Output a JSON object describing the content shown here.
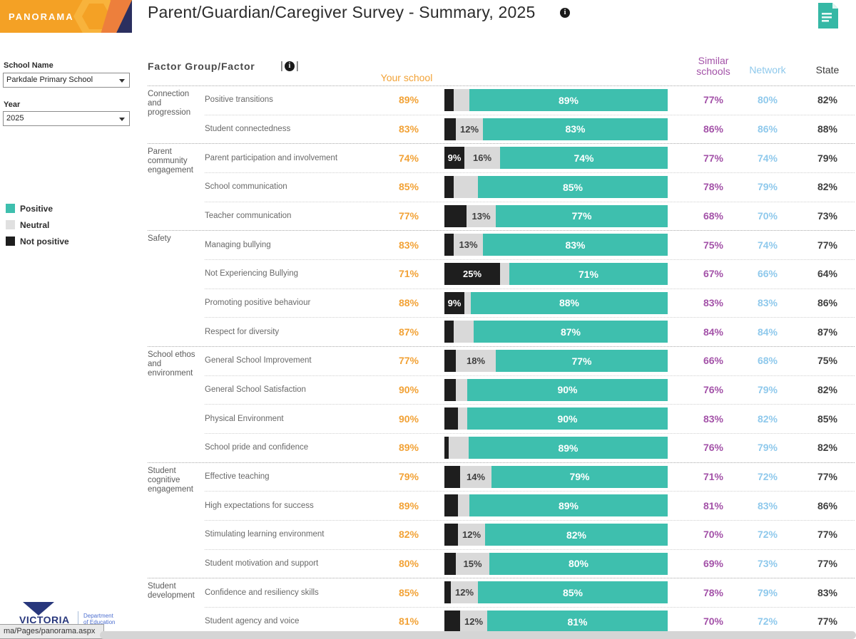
{
  "banner": {
    "brand": "PANORAMA"
  },
  "header": {
    "title": "Parent/Guardian/Caregiver Survey - Summary, 2025"
  },
  "sidebar": {
    "school_label": "School Name",
    "school_value": "Parkdale Primary School",
    "year_label": "Year",
    "year_value": "2025",
    "legend": [
      {
        "label": "Positive",
        "color": "#3ebfae"
      },
      {
        "label": "Neutral",
        "color": "#e0e0e0"
      },
      {
        "label": "Not positive",
        "color": "#1e1e1e"
      }
    ]
  },
  "table": {
    "col_factor": "Factor Group/Factor",
    "col_your_school": "Your school",
    "col_similar": "Similar schools",
    "col_network": "Network",
    "col_state": "State",
    "bar_colors": {
      "positive": "#3ebfae",
      "neutral": "#d9d9d9",
      "not_positive": "#1e1e1e"
    },
    "groups": [
      {
        "group": "Connection and progression",
        "rows": [
          {
            "factor": "Positive transitions",
            "your": "89%",
            "np": 4,
            "np_label": "",
            "neu": 7,
            "neu_label": "",
            "pos_label": "89%",
            "similar": "77%",
            "network": "80%",
            "state": "82%"
          },
          {
            "factor": "Student connectedness",
            "your": "83%",
            "np": 5,
            "np_label": "",
            "neu": 12,
            "neu_label": "12%",
            "pos_label": "83%",
            "similar": "86%",
            "network": "86%",
            "state": "88%"
          }
        ]
      },
      {
        "group": "Parent community engagement",
        "rows": [
          {
            "factor": "Parent participation and involvement",
            "your": "74%",
            "np": 9,
            "np_label": "9%",
            "neu": 16,
            "neu_label": "16%",
            "pos_label": "74%",
            "similar": "77%",
            "network": "74%",
            "state": "79%"
          },
          {
            "factor": "School communication",
            "your": "85%",
            "np": 4,
            "np_label": "",
            "neu": 11,
            "neu_label": "",
            "pos_label": "85%",
            "similar": "78%",
            "network": "79%",
            "state": "82%"
          },
          {
            "factor": "Teacher communication",
            "your": "77%",
            "np": 10,
            "np_label": "",
            "neu": 13,
            "neu_label": "13%",
            "pos_label": "77%",
            "similar": "68%",
            "network": "70%",
            "state": "73%"
          }
        ]
      },
      {
        "group": "Safety",
        "rows": [
          {
            "factor": "Managing bullying",
            "your": "83%",
            "np": 4,
            "np_label": "",
            "neu": 13,
            "neu_label": "13%",
            "pos_label": "83%",
            "similar": "75%",
            "network": "74%",
            "state": "77%"
          },
          {
            "factor": "Not Experiencing Bullying",
            "your": "71%",
            "np": 25,
            "np_label": "25%",
            "neu": 4,
            "neu_label": "",
            "pos_label": "71%",
            "similar": "67%",
            "network": "66%",
            "state": "64%"
          },
          {
            "factor": "Promoting positive behaviour",
            "your": "88%",
            "np": 9,
            "np_label": "9%",
            "neu": 3,
            "neu_label": "",
            "pos_label": "88%",
            "similar": "83%",
            "network": "83%",
            "state": "86%"
          },
          {
            "factor": "Respect for diversity",
            "your": "87%",
            "np": 4,
            "np_label": "",
            "neu": 9,
            "neu_label": "",
            "pos_label": "87%",
            "similar": "84%",
            "network": "84%",
            "state": "87%"
          }
        ]
      },
      {
        "group": "School ethos and environment",
        "rows": [
          {
            "factor": "General School Improvement",
            "your": "77%",
            "np": 5,
            "np_label": "",
            "neu": 18,
            "neu_label": "18%",
            "pos_label": "77%",
            "similar": "66%",
            "network": "68%",
            "state": "75%"
          },
          {
            "factor": "General School Satisfaction",
            "your": "90%",
            "np": 5,
            "np_label": "",
            "neu": 5,
            "neu_label": "",
            "pos_label": "90%",
            "similar": "76%",
            "network": "79%",
            "state": "82%"
          },
          {
            "factor": "Physical Environment",
            "your": "90%",
            "np": 6,
            "np_label": "",
            "neu": 4,
            "neu_label": "",
            "pos_label": "90%",
            "similar": "83%",
            "network": "82%",
            "state": "85%"
          },
          {
            "factor": "School pride and confidence",
            "your": "89%",
            "np": 2,
            "np_label": "",
            "neu": 9,
            "neu_label": "",
            "pos_label": "89%",
            "similar": "76%",
            "network": "79%",
            "state": "82%"
          }
        ]
      },
      {
        "group": "Student cognitive engagement",
        "rows": [
          {
            "factor": "Effective teaching",
            "your": "79%",
            "np": 7,
            "np_label": "",
            "neu": 14,
            "neu_label": "14%",
            "pos_label": "79%",
            "similar": "71%",
            "network": "72%",
            "state": "77%"
          },
          {
            "factor": "High expectations for success",
            "your": "89%",
            "np": 6,
            "np_label": "",
            "neu": 5,
            "neu_label": "",
            "pos_label": "89%",
            "similar": "81%",
            "network": "83%",
            "state": "86%"
          },
          {
            "factor": "Stimulating learning environment",
            "your": "82%",
            "np": 6,
            "np_label": "",
            "neu": 12,
            "neu_label": "12%",
            "pos_label": "82%",
            "similar": "70%",
            "network": "72%",
            "state": "77%"
          },
          {
            "factor": "Student motivation and support",
            "your": "80%",
            "np": 5,
            "np_label": "",
            "neu": 15,
            "neu_label": "15%",
            "pos_label": "80%",
            "similar": "69%",
            "network": "73%",
            "state": "77%"
          }
        ]
      },
      {
        "group": "Student development",
        "rows": [
          {
            "factor": "Confidence and resiliency skills",
            "your": "85%",
            "np": 3,
            "np_label": "",
            "neu": 12,
            "neu_label": "12%",
            "pos_label": "85%",
            "similar": "78%",
            "network": "79%",
            "state": "83%"
          },
          {
            "factor": "Student agency and voice",
            "your": "81%",
            "np": 7,
            "np_label": "",
            "neu": 12,
            "neu_label": "12%",
            "pos_label": "81%",
            "similar": "70%",
            "network": "72%",
            "state": "77%"
          }
        ]
      }
    ]
  },
  "footer": {
    "victoria": "VICTORIA",
    "dept_line1": "Department",
    "dept_line2": "of Education",
    "status_url": "ma/Pages/panorama.aspx"
  }
}
